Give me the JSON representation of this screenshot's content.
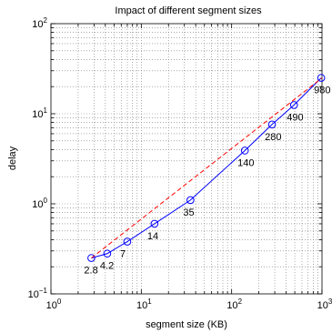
{
  "chart_data": {
    "type": "line",
    "title": "Impact of different segment sizes",
    "xlabel": "segment size (KB)",
    "ylabel": "delay",
    "xscale": "log",
    "yscale": "log",
    "xlim": [
      1,
      1000
    ],
    "ylim": [
      0.1,
      100
    ],
    "grid": true,
    "x_ticks": [
      {
        "value": 1,
        "base": "10",
        "exp": "0"
      },
      {
        "value": 10,
        "base": "10",
        "exp": "1"
      },
      {
        "value": 100,
        "base": "10",
        "exp": "2"
      },
      {
        "value": 1000,
        "base": "10",
        "exp": "3"
      }
    ],
    "y_ticks": [
      {
        "value": 0.1,
        "base": "10",
        "exp": "−1"
      },
      {
        "value": 1,
        "base": "10",
        "exp": "0"
      },
      {
        "value": 10,
        "base": "10",
        "exp": "1"
      },
      {
        "value": 100,
        "base": "10",
        "exp": "2"
      }
    ],
    "series": [
      {
        "style": "solid-circle",
        "color": "#0000ff",
        "x": [
          2.8,
          4.2,
          7,
          14,
          35,
          140,
          280,
          490,
          980
        ],
        "y": [
          0.25,
          0.28,
          0.38,
          0.6,
          1.1,
          3.9,
          7.6,
          12.5,
          25
        ]
      },
      {
        "style": "dashed",
        "color": "#ff0000",
        "x": [
          2.8,
          1000
        ],
        "y": [
          0.25,
          25
        ]
      }
    ],
    "point_labels": [
      "2.8",
      "4.2",
      "7",
      "14",
      "35",
      "140",
      "280",
      "490",
      "980"
    ]
  }
}
